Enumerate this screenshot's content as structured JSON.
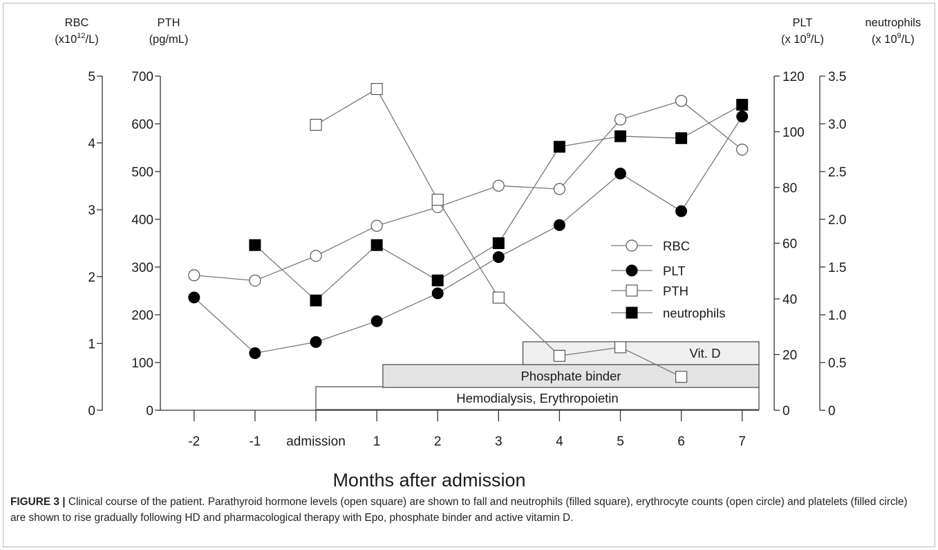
{
  "chart_data": {
    "type": "line",
    "xlabel": "Months after admission",
    "x_categories": [
      "-2",
      "-1",
      "admission",
      "1",
      "2",
      "3",
      "4",
      "5",
      "6",
      "7"
    ],
    "axes": {
      "rbc": {
        "label_line1": "RBC",
        "label_line2": "(x10",
        "label_sup": "12",
        "label_line2_end": "/L)",
        "range": [
          0,
          5
        ],
        "ticks": [
          "0",
          "1",
          "2",
          "3",
          "4",
          "5"
        ]
      },
      "pth": {
        "label_line1": "PTH",
        "label_line2": "(pg/mL)",
        "range": [
          0,
          700
        ],
        "ticks": [
          "0",
          "100",
          "200",
          "300",
          "400",
          "500",
          "600",
          "700"
        ]
      },
      "plt": {
        "label_line1": "PLT",
        "label_line2": "(x 10",
        "label_sup": "9",
        "label_line2_end": "/L)",
        "range": [
          0,
          120
        ],
        "ticks": [
          "0",
          "20",
          "40",
          "60",
          "80",
          "100",
          "120"
        ]
      },
      "neutrophils": {
        "label_line1": "neutrophils",
        "label_line2": "(x 10",
        "label_sup": "9",
        "label_line2_end": "/L)",
        "range": [
          0,
          3.5
        ],
        "ticks": [
          "0",
          "0.5",
          "1.0",
          "1.5",
          "2.0",
          "2.5",
          "3.0",
          "3.5"
        ]
      }
    },
    "series": [
      {
        "name": "RBC",
        "axis": "rbc",
        "marker": "open-circle",
        "x": [
          -2,
          -1,
          0,
          1,
          2,
          3,
          4,
          5,
          6,
          7
        ],
        "values": [
          2.02,
          1.94,
          2.31,
          2.76,
          3.04,
          3.36,
          3.31,
          4.35,
          4.63,
          3.9
        ]
      },
      {
        "name": "PLT",
        "axis": "plt",
        "marker": "filled-circle",
        "x": [
          -2,
          -1,
          0,
          1,
          2,
          3,
          4,
          5,
          6,
          7
        ],
        "values": [
          40.5,
          20.5,
          24.5,
          32,
          42,
          55,
          66.5,
          85,
          71.5,
          105.5
        ]
      },
      {
        "name": "PTH",
        "axis": "pth",
        "marker": "open-square",
        "x": [
          0,
          1,
          2,
          3,
          4,
          5,
          6
        ],
        "values": [
          598,
          673,
          441,
          236,
          114,
          132,
          70
        ]
      },
      {
        "name": "neutrophils",
        "axis": "neutrophils",
        "marker": "filled-square",
        "x": [
          -1,
          0,
          1,
          2,
          3,
          4,
          5,
          6,
          7
        ],
        "values": [
          1.73,
          1.15,
          1.73,
          1.36,
          1.75,
          2.76,
          2.87,
          2.85,
          3.2
        ]
      }
    ],
    "therapy_bars": [
      {
        "label": "Hemodialysis, Erythropoietin",
        "start": 0,
        "color": "#ffffff"
      },
      {
        "label": "Phosphate binder",
        "start": 1.1,
        "color": "#e3e3e3"
      },
      {
        "label": "Vit. D",
        "start": 3.4,
        "color": "#efefef"
      }
    ]
  },
  "caption": {
    "label": "FIGURE 3 |",
    "text": " Clinical course of the patient. Parathyroid hormone levels (open square) are shown to fall and neutrophils (filled square), erythrocyte counts (open circle) and platelets (filled circle) are shown to rise gradually following HD and pharmacological therapy with Epo, phosphate binder and active vitamin D."
  }
}
